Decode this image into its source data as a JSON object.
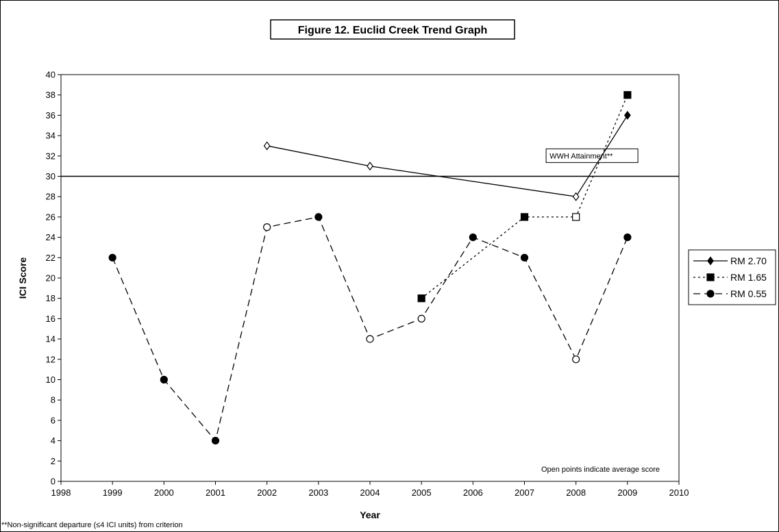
{
  "chart_data": {
    "type": "line",
    "title": "Figure 12. Euclid Creek Trend Graph",
    "xlabel": "Year",
    "ylabel": "ICI Score",
    "xlim": [
      1998,
      2010
    ],
    "ylim": [
      0,
      40
    ],
    "x_ticks": [
      "1998",
      "1999",
      "2000",
      "2001",
      "2002",
      "2003",
      "2004",
      "2005",
      "2006",
      "2007",
      "2008",
      "2009",
      "2010"
    ],
    "y_ticks": [
      "0",
      "2",
      "4",
      "6",
      "8",
      "10",
      "12",
      "14",
      "16",
      "18",
      "20",
      "22",
      "24",
      "26",
      "28",
      "30",
      "32",
      "34",
      "36",
      "38",
      "40"
    ],
    "grid": false,
    "legend_position": "right",
    "reference_line": {
      "y": 30,
      "label": "WWH Attainment**"
    },
    "annotation": "Open points indicate average score",
    "footnote": "**Non-significant departure (≤4 ICI units) from criterion",
    "series": [
      {
        "name": "RM 2.70",
        "marker": "diamond",
        "line_style": "solid",
        "points": [
          {
            "x": 2002,
            "y": 33,
            "open": true
          },
          {
            "x": 2004,
            "y": 31,
            "open": true
          },
          {
            "x": 2008,
            "y": 28,
            "open": true
          },
          {
            "x": 2009,
            "y": 36,
            "open": false
          }
        ]
      },
      {
        "name": "RM 1.65",
        "marker": "square",
        "line_style": "dotted",
        "points": [
          {
            "x": 2005,
            "y": 18,
            "open": false
          },
          {
            "x": 2007,
            "y": 26,
            "open": false
          },
          {
            "x": 2008,
            "y": 26,
            "open": true
          },
          {
            "x": 2009,
            "y": 38,
            "open": false
          }
        ]
      },
      {
        "name": "RM 0.55",
        "marker": "circle",
        "line_style": "dashed",
        "points": [
          {
            "x": 1999,
            "y": 22,
            "open": false
          },
          {
            "x": 2000,
            "y": 10,
            "open": false
          },
          {
            "x": 2001,
            "y": 4,
            "open": false
          },
          {
            "x": 2002,
            "y": 25,
            "open": true
          },
          {
            "x": 2003,
            "y": 26,
            "open": false
          },
          {
            "x": 2004,
            "y": 14,
            "open": true
          },
          {
            "x": 2005,
            "y": 16,
            "open": true
          },
          {
            "x": 2006,
            "y": 24,
            "open": false
          },
          {
            "x": 2007,
            "y": 22,
            "open": false
          },
          {
            "x": 2008,
            "y": 12,
            "open": true
          },
          {
            "x": 2009,
            "y": 24,
            "open": false
          }
        ]
      }
    ]
  }
}
